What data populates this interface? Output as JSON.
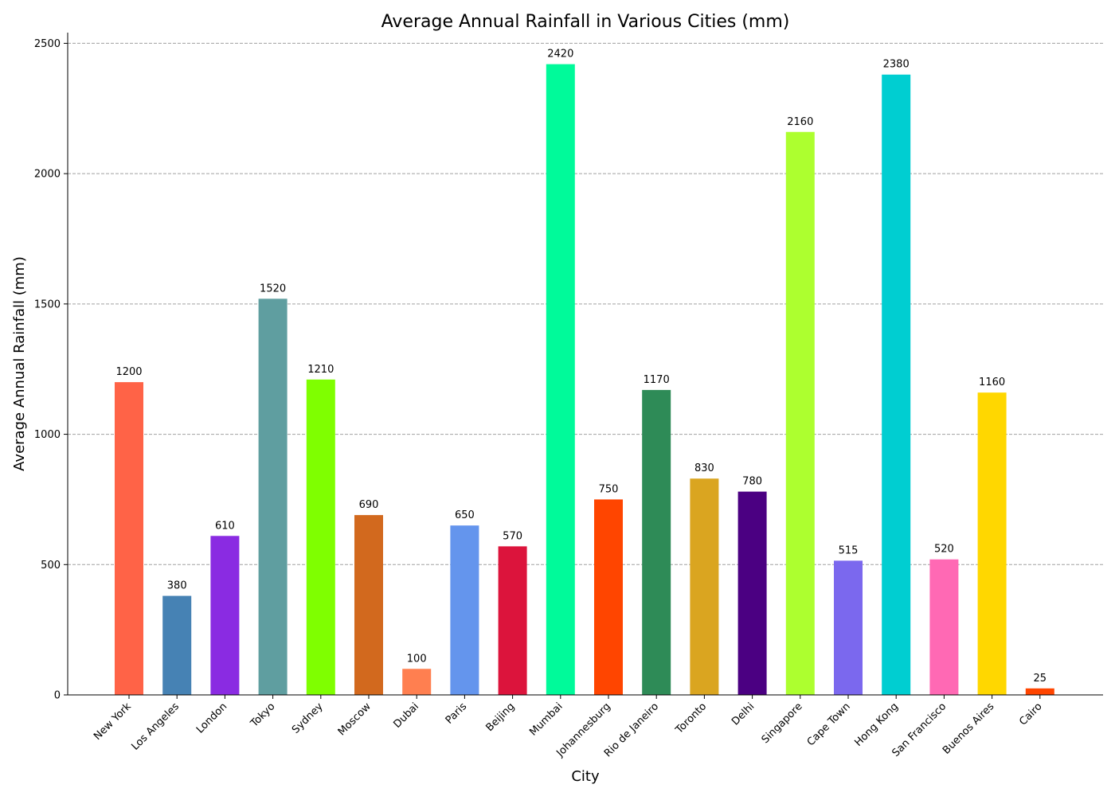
{
  "chart_data": {
    "type": "bar",
    "title": "Average Annual Rainfall in Various Cities (mm)",
    "xlabel": "City",
    "ylabel": "Average Annual Rainfall (mm)",
    "ylim": [
      0,
      2541
    ],
    "yticks": [
      0,
      500,
      1000,
      1500,
      2000,
      2500
    ],
    "grid": "y, dashed",
    "categories": [
      "New York",
      "Los Angeles",
      "London",
      "Tokyo",
      "Sydney",
      "Moscow",
      "Dubai",
      "Paris",
      "Beijing",
      "Mumbai",
      "Johannesburg",
      "Rio de Janeiro",
      "Toronto",
      "Delhi",
      "Singapore",
      "Cape Town",
      "Hong Kong",
      "San Francisco",
      "Buenos Aires",
      "Cairo"
    ],
    "values": [
      1200,
      380,
      610,
      1520,
      1210,
      690,
      100,
      650,
      570,
      2420,
      750,
      1170,
      830,
      780,
      2160,
      515,
      2380,
      520,
      1160,
      25
    ],
    "colors": [
      "#ff6347",
      "#4682b4",
      "#8a2be2",
      "#5f9ea0",
      "#7fff00",
      "#d2691e",
      "#ff7f50",
      "#6495ed",
      "#dc143c",
      "#00fa9a",
      "#ff4500",
      "#2e8b57",
      "#daa520",
      "#4b0082",
      "#adff2f",
      "#7b68ee",
      "#00ced1",
      "#ff69b4",
      "#ffd700",
      "#ff4500"
    ]
  }
}
